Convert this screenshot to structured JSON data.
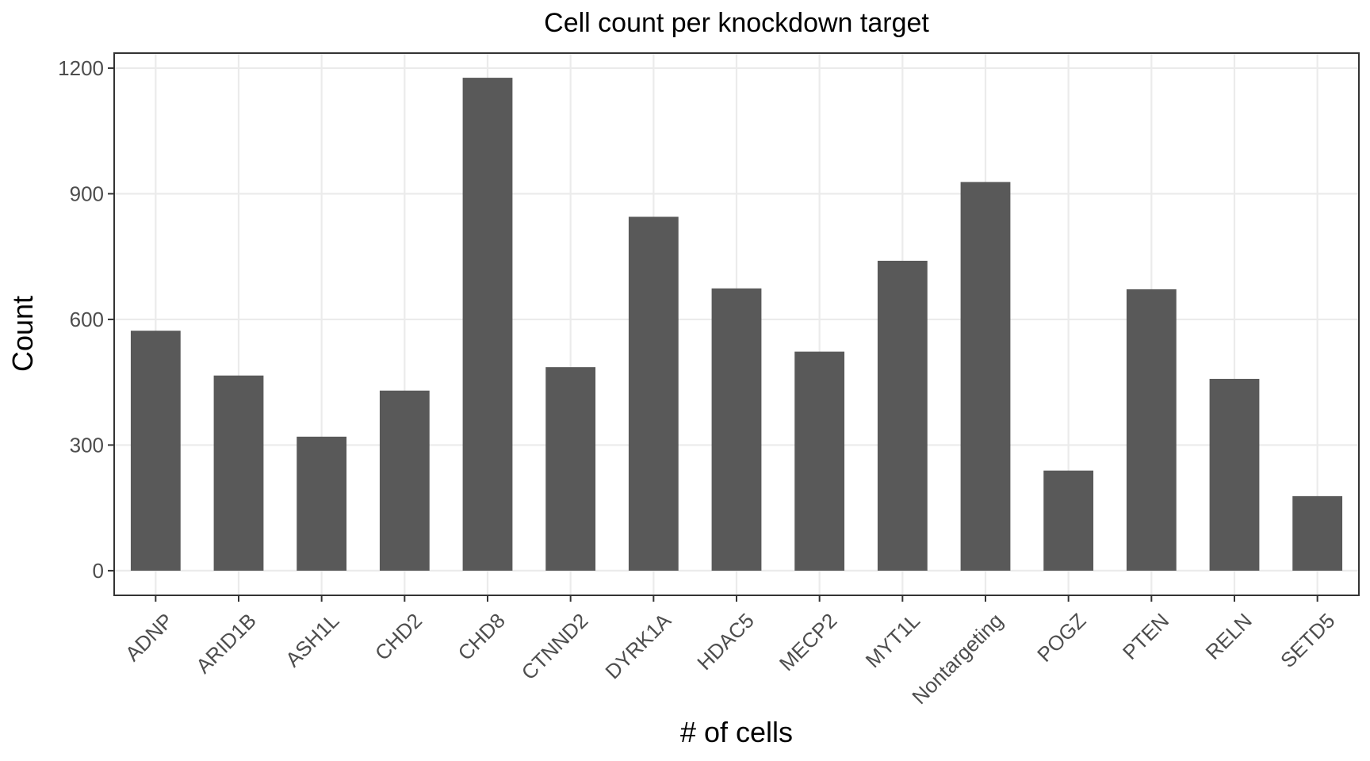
{
  "chart_data": {
    "type": "bar",
    "title": "Cell count per knockdown target",
    "xlabel": "# of cells",
    "ylabel": "Count",
    "categories": [
      "ADNP",
      "ARID1B",
      "ASH1L",
      "CHD2",
      "CHD8",
      "CTNND2",
      "DYRK1A",
      "HDAC5",
      "MECP2",
      "MYT1L",
      "Nontargeting",
      "POGZ",
      "PTEN",
      "RELN",
      "SETD5"
    ],
    "values": [
      573,
      466,
      320,
      430,
      1177,
      486,
      845,
      674,
      523,
      740,
      928,
      239,
      672,
      458,
      178
    ],
    "yticks": [
      0,
      300,
      600,
      900,
      1200
    ],
    "ylim": [
      -58.85,
      1235.85
    ],
    "bar_color": "#595959",
    "grid": true,
    "legend": "none"
  }
}
